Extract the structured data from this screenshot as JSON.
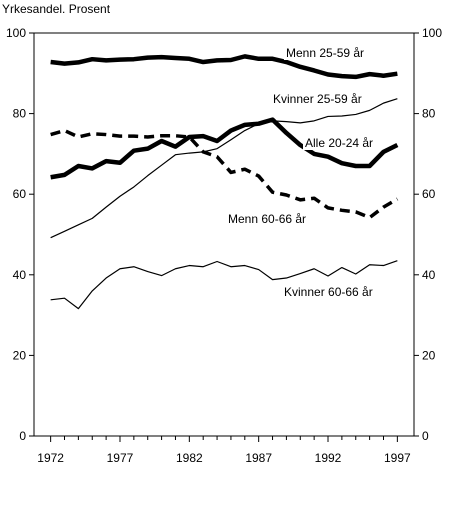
{
  "chart_data": {
    "type": "line",
    "ylabel": "Yrkesandel. Prosent",
    "ylim": [
      0,
      100
    ],
    "xlim": [
      1970.8,
      1998.2
    ],
    "y_ticks": [
      0,
      20,
      40,
      60,
      80,
      100
    ],
    "x_ticks": [
      1972,
      1977,
      1982,
      1987,
      1992,
      1997
    ],
    "x_tick_labels": [
      "1972",
      "1977",
      "1982",
      "1987",
      "1992",
      "1997"
    ],
    "grid": false,
    "x": [
      1972,
      1973,
      1974,
      1975,
      1976,
      1977,
      1978,
      1979,
      1980,
      1981,
      1982,
      1983,
      1984,
      1985,
      1986,
      1987,
      1988,
      1989,
      1990,
      1991,
      1992,
      1993,
      1994,
      1995,
      1996,
      1997
    ],
    "series": [
      {
        "name": "Menn 25-59 år",
        "style": "thick",
        "values": [
          92.8,
          92.4,
          92.7,
          93.5,
          93.2,
          93.4,
          93.5,
          93.9,
          94.0,
          93.8,
          93.6,
          92.8,
          93.2,
          93.3,
          94.2,
          93.6,
          93.6,
          92.8,
          91.6,
          90.7,
          89.7,
          89.3,
          89.1,
          89.8,
          89.4,
          89.9
        ]
      },
      {
        "name": "Kvinner 25-59 år",
        "style": "thin",
        "values": [
          49.2,
          50.8,
          52.4,
          54.0,
          56.8,
          59.5,
          61.8,
          64.6,
          67.2,
          69.8,
          70.2,
          70.5,
          71.3,
          73.5,
          75.8,
          77.5,
          78.2,
          78.0,
          77.7,
          78.2,
          79.3,
          79.4,
          79.8,
          80.8,
          82.6,
          83.7
        ]
      },
      {
        "name": "Alle 20-24 år",
        "style": "thick",
        "values": [
          64.2,
          64.8,
          67.0,
          66.4,
          68.2,
          67.8,
          70.8,
          71.3,
          73.2,
          71.8,
          74.2,
          74.4,
          73.2,
          75.8,
          77.2,
          77.5,
          78.5,
          75.2,
          72.2,
          70.0,
          69.3,
          67.7,
          67.0,
          67.0,
          70.5,
          72.2
        ]
      },
      {
        "name": "Menn 60-66 år",
        "style": "dashed",
        "values": [
          74.8,
          75.8,
          74.2,
          75.0,
          74.8,
          74.4,
          74.4,
          74.2,
          74.5,
          74.5,
          74.2,
          70.5,
          69.3,
          65.4,
          66.2,
          64.5,
          60.5,
          59.8,
          58.6,
          59.0,
          56.6,
          56.0,
          55.6,
          54.2,
          56.8,
          58.8
        ]
      },
      {
        "name": "Kvinner 60-66 år",
        "style": "thin",
        "values": [
          33.8,
          34.2,
          31.6,
          36.0,
          39.2,
          41.5,
          42.0,
          40.8,
          39.8,
          41.5,
          42.3,
          42.0,
          43.3,
          42.0,
          42.3,
          41.3,
          38.8,
          39.2,
          40.3,
          41.5,
          39.7,
          41.8,
          40.2,
          42.5,
          42.3,
          43.5
        ]
      }
    ]
  }
}
